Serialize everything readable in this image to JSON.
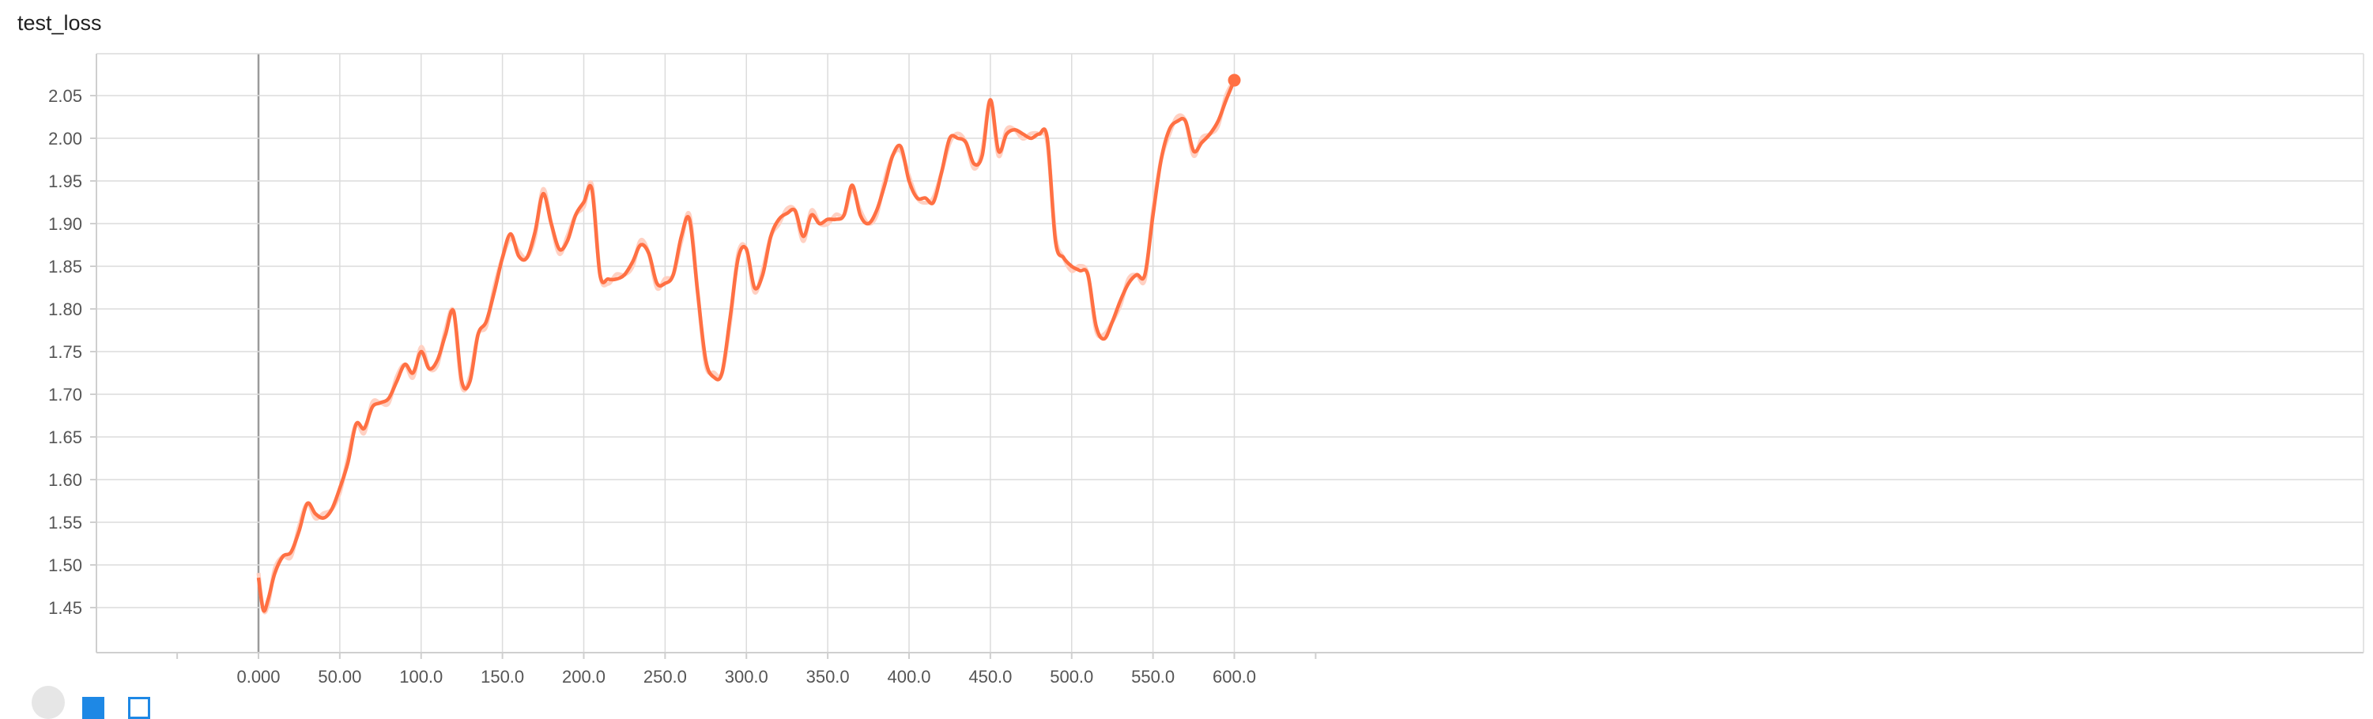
{
  "panel": {
    "title": "test_loss"
  },
  "chart_data": {
    "type": "line",
    "title": "test_loss",
    "xlabel": "",
    "ylabel": "",
    "xlim": [
      -50,
      650
    ],
    "ylim": [
      1.4,
      2.1
    ],
    "x_ticks": [
      "0.000",
      "50.00",
      "100.0",
      "150.0",
      "200.0",
      "250.0",
      "300.0",
      "350.0",
      "400.0",
      "450.0",
      "500.0",
      "550.0",
      "600.0"
    ],
    "y_ticks": [
      "1.45",
      "1.50",
      "1.55",
      "1.60",
      "1.65",
      "1.70",
      "1.75",
      "1.80",
      "1.85",
      "1.90",
      "1.95",
      "2.00",
      "2.05"
    ],
    "grid": true,
    "colors": {
      "smoothed": "#ff7043",
      "raw": "#ffd1c3"
    },
    "series": [
      {
        "x": [
          0,
          3,
          6,
          10,
          15,
          20,
          25,
          30,
          35,
          40,
          45,
          50,
          55,
          60,
          65,
          70,
          75,
          80,
          85,
          90,
          95,
          100,
          105,
          110,
          115,
          120,
          125,
          130,
          135,
          140,
          145,
          150,
          155,
          160,
          165,
          170,
          175,
          180,
          185,
          190,
          195,
          200,
          205,
          210,
          215,
          220,
          225,
          230,
          235,
          240,
          245,
          250,
          255,
          260,
          265,
          270,
          275,
          280,
          285,
          290,
          295,
          300,
          305,
          310,
          315,
          320,
          325,
          330,
          335,
          340,
          345,
          350,
          355,
          360,
          365,
          370,
          375,
          380,
          385,
          390,
          395,
          400,
          405,
          410,
          415,
          420,
          425,
          430,
          435,
          440,
          445,
          450,
          455,
          460,
          465,
          470,
          475,
          480,
          485,
          490,
          495,
          500,
          505,
          510,
          515,
          520,
          525,
          530,
          535,
          540,
          545,
          550,
          555,
          560,
          565,
          570,
          575,
          580,
          585,
          590,
          595,
          600
        ],
        "values": [
          1.485,
          1.447,
          1.46,
          1.49,
          1.51,
          1.515,
          1.54,
          1.572,
          1.56,
          1.555,
          1.565,
          1.59,
          1.62,
          1.665,
          1.66,
          1.685,
          1.69,
          1.695,
          1.715,
          1.735,
          1.725,
          1.75,
          1.73,
          1.74,
          1.77,
          1.797,
          1.715,
          1.715,
          1.77,
          1.785,
          1.82,
          1.86,
          1.888,
          1.862,
          1.86,
          1.89,
          1.935,
          1.9,
          1.87,
          1.88,
          1.91,
          1.925,
          1.94,
          1.84,
          1.835,
          1.835,
          1.84,
          1.855,
          1.875,
          1.865,
          1.83,
          1.83,
          1.84,
          1.885,
          1.905,
          1.82,
          1.74,
          1.72,
          1.725,
          1.79,
          1.86,
          1.87,
          1.825,
          1.84,
          1.885,
          1.905,
          1.912,
          1.915,
          1.885,
          1.91,
          1.9,
          1.905,
          1.905,
          1.91,
          1.945,
          1.91,
          1.9,
          1.915,
          1.945,
          1.98,
          1.99,
          1.95,
          1.93,
          1.93,
          1.925,
          1.96,
          2.0,
          2.0,
          1.995,
          1.97,
          1.98,
          2.045,
          1.985,
          2.005,
          2.01,
          2.005,
          2.0,
          2.005,
          2.0,
          1.88,
          1.86,
          1.85,
          1.845,
          1.84,
          1.78,
          1.765,
          1.785,
          1.81,
          1.83,
          1.84,
          1.84,
          1.91,
          1.975,
          2.01,
          2.02,
          2.02,
          1.985,
          1.995,
          2.005,
          2.02,
          2.045,
          2.068
        ]
      }
    ]
  },
  "toolbar": {
    "icons": [
      "expand-icon",
      "data-selection-icon",
      "fit-domain-icon"
    ]
  }
}
